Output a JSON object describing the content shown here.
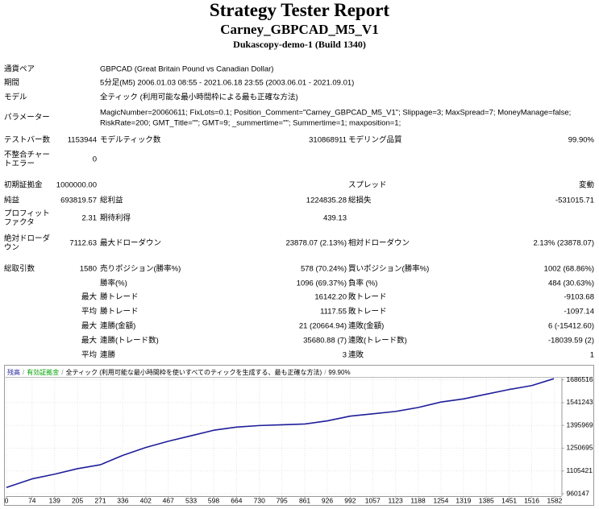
{
  "header": {
    "title": "Strategy Tester Report",
    "subtitle": "Carney_GBPCAD_M5_V1",
    "server": "Dukascopy-demo-1 (Build 1340)"
  },
  "info": [
    {
      "label": "通貨ペア",
      "value": "GBPCAD (Great Britain Pound vs Canadian Dollar)"
    },
    {
      "label": "期間",
      "value": "5分足(M5) 2006.01.03 08:55 - 2021.06.18 23:55 (2003.06.01 - 2021.09.01)"
    },
    {
      "label": "モデル",
      "value": "全ティック (利用可能な最小時間枠による最も正確な方法)"
    },
    {
      "label": "パラメーター",
      "value": [
        "MagicNumber=20060611; FixLots=0.1; Position_Comment=\"Carney_GBPCAD_M5_V1\"; Slippage=3; MaxSpread=7; MoneyManage=false;",
        "RiskRate=200; GMT_Title=\"\"; GMT=9; _summertime=\"\"; Summertime=1; maxposition=1;"
      ]
    }
  ],
  "stats": [
    [
      {
        "label": "テストバー数",
        "value": "1153944"
      },
      {
        "label": "モデルティック数",
        "value": "310868911"
      },
      {
        "label": "モデリング品質",
        "value": "99.90%"
      }
    ],
    [
      {
        "label": "不整合チャートエラー",
        "value": "0"
      }
    ],
    [
      {
        "label": "初期証拠金",
        "value": "1000000.00"
      },
      null,
      {
        "label": "スプレッド",
        "value": "変動"
      }
    ],
    [
      {
        "label": "純益",
        "value": "693819.57"
      },
      {
        "label": "総利益",
        "value": "1224835.28"
      },
      {
        "label": "総損失",
        "value": "-531015.71"
      }
    ],
    [
      {
        "label": "プロフィットファクタ",
        "value": "2.31"
      },
      {
        "label": "期待利得",
        "value": "439.13"
      }
    ],
    [
      {
        "label": "絶対ドローダウン",
        "value": "7112.63"
      },
      {
        "label": "最大ドローダウン",
        "value": "23878.07 (2.13%)"
      },
      {
        "label": "相対ドローダウン",
        "value": "2.13% (23878.07)"
      }
    ],
    [
      {
        "label": "総取引数",
        "value": "1580"
      },
      {
        "label": "売りポジション(勝率%)",
        "value": "578 (70.24%)"
      },
      {
        "label": "買いポジション(勝率%)",
        "value": "1002 (68.86%)"
      }
    ],
    [
      null,
      {
        "label": "勝率(%)",
        "value": "1096 (69.37%)"
      },
      {
        "label": "負率 (%)",
        "value": "484 (30.63%)"
      }
    ],
    [
      {
        "label": "最大"
      },
      {
        "label": "勝トレード",
        "value": "16142.20"
      },
      {
        "label": "敗トレード",
        "value": "-9103.68"
      }
    ],
    [
      {
        "label": "平均"
      },
      {
        "label": "勝トレード",
        "value": "1117.55"
      },
      {
        "label": "敗トレード",
        "value": "-1097.14"
      }
    ],
    [
      {
        "label": "最大"
      },
      {
        "label": "連勝(金額)",
        "value": "21 (20664.94)"
      },
      {
        "label": "連敗(金額)",
        "value": "6 (-15412.60)"
      }
    ],
    [
      {
        "label": "最大"
      },
      {
        "label": "連勝(トレード数)",
        "value": "35680.88 (7)"
      },
      {
        "label": "連敗(トレード数)",
        "value": "-18039.59 (2)"
      }
    ],
    [
      {
        "label": "平均"
      },
      {
        "label": "連勝",
        "value": "3"
      },
      {
        "label": "連敗",
        "value": "1"
      }
    ]
  ],
  "chart_data": {
    "type": "line",
    "x": [
      0,
      74,
      139,
      205,
      271,
      336,
      402,
      467,
      533,
      598,
      664,
      730,
      795,
      861,
      926,
      992,
      1057,
      1123,
      1188,
      1254,
      1319,
      1385,
      1451,
      1516,
      1580
    ],
    "series": [
      {
        "name": "残高",
        "color": "#1e1e9a",
        "values": [
          1000000,
          1055000,
          1085000,
          1120000,
          1145000,
          1205000,
          1255000,
          1295000,
          1330000,
          1365000,
          1385000,
          1395000,
          1400000,
          1405000,
          1425000,
          1455000,
          1470000,
          1485000,
          1510000,
          1545000,
          1565000,
          1595000,
          1625000,
          1650000,
          1693819.57
        ]
      }
    ],
    "equity_legend": {
      "name": "有効証拠金",
      "color": "#00a000"
    },
    "separator": "/",
    "model": "全ティック (利用可能な最小時間枠を使いすべてのティックを生成する、最も正確な方法)",
    "quality": "99.90%",
    "xlim": [
      0,
      1602
    ],
    "xticks": [
      0,
      74,
      139,
      205,
      271,
      336,
      402,
      467,
      533,
      598,
      664,
      730,
      795,
      861,
      926,
      992,
      1057,
      1123,
      1188,
      1254,
      1319,
      1385,
      1451,
      1516,
      1582
    ],
    "ylim": [
      945000,
      1700000
    ],
    "yticks": [
      1686516,
      1541243,
      1395969,
      1250695,
      1105421,
      960147
    ],
    "grid": true
  }
}
